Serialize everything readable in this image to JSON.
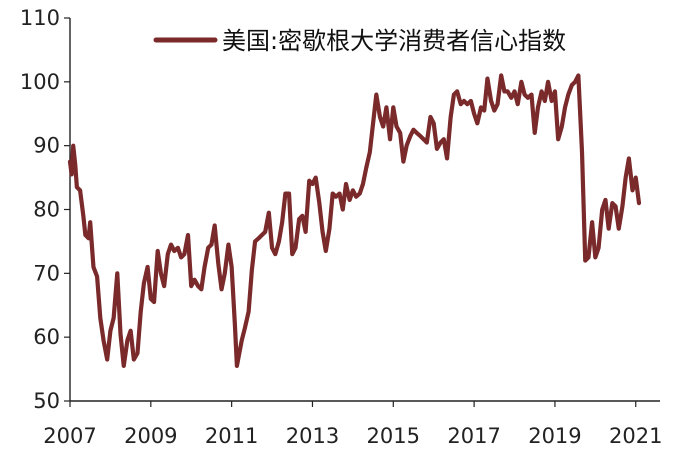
{
  "chart_data": {
    "type": "line",
    "title": "",
    "xlabel": "",
    "ylabel": "",
    "ylim": [
      50,
      110
    ],
    "xlim": [
      2007.0,
      2021.6
    ],
    "grid": false,
    "legend_position": "top",
    "y_ticks": [
      50,
      60,
      70,
      80,
      90,
      100,
      110
    ],
    "y_tick_labels": [
      "50",
      "60",
      "70",
      "80",
      "90",
      "100",
      "110"
    ],
    "x_ticks": [
      2007,
      2009,
      2011,
      2013,
      2015,
      2017,
      2019,
      2021
    ],
    "x_tick_labels": [
      "2007",
      "2009",
      "2011",
      "2013",
      "2015",
      "2017",
      "2019",
      "2021"
    ],
    "series": [
      {
        "name": "美国:密歇根大学消费者信心指数",
        "color": "#7a2a2a",
        "points": [
          [
            2007.0,
            87.5
          ],
          [
            2007.04,
            85.5
          ],
          [
            2007.08,
            90.0
          ],
          [
            2007.13,
            87.0
          ],
          [
            2007.17,
            83.5
          ],
          [
            2007.25,
            83.0
          ],
          [
            2007.33,
            79.0
          ],
          [
            2007.38,
            76.0
          ],
          [
            2007.46,
            75.5
          ],
          [
            2007.5,
            78.0
          ],
          [
            2007.58,
            71.0
          ],
          [
            2007.67,
            69.5
          ],
          [
            2007.75,
            63.0
          ],
          [
            2007.83,
            59.5
          ],
          [
            2007.92,
            56.5
          ],
          [
            2008.0,
            61.0
          ],
          [
            2008.08,
            63.0
          ],
          [
            2008.17,
            70.0
          ],
          [
            2008.25,
            60.5
          ],
          [
            2008.33,
            55.5
          ],
          [
            2008.42,
            59.5
          ],
          [
            2008.5,
            61.0
          ],
          [
            2008.58,
            56.5
          ],
          [
            2008.67,
            57.5
          ],
          [
            2008.75,
            64.0
          ],
          [
            2008.83,
            68.5
          ],
          [
            2008.92,
            71.0
          ],
          [
            2009.0,
            66.0
          ],
          [
            2009.08,
            65.5
          ],
          [
            2009.17,
            73.5
          ],
          [
            2009.25,
            70.0
          ],
          [
            2009.33,
            68.0
          ],
          [
            2009.42,
            73.0
          ],
          [
            2009.5,
            74.5
          ],
          [
            2009.58,
            73.5
          ],
          [
            2009.67,
            74.0
          ],
          [
            2009.75,
            72.5
          ],
          [
            2009.83,
            73.0
          ],
          [
            2009.92,
            76.0
          ],
          [
            2010.0,
            68.0
          ],
          [
            2010.08,
            69.0
          ],
          [
            2010.17,
            68.0
          ],
          [
            2010.25,
            67.5
          ],
          [
            2010.33,
            71.0
          ],
          [
            2010.42,
            74.0
          ],
          [
            2010.5,
            74.5
          ],
          [
            2010.58,
            77.5
          ],
          [
            2010.67,
            71.5
          ],
          [
            2010.75,
            67.5
          ],
          [
            2010.83,
            70.0
          ],
          [
            2010.92,
            74.5
          ],
          [
            2011.0,
            71.0
          ],
          [
            2011.08,
            62.0
          ],
          [
            2011.13,
            55.5
          ],
          [
            2011.25,
            59.5
          ],
          [
            2011.33,
            61.5
          ],
          [
            2011.42,
            64.0
          ],
          [
            2011.5,
            70.5
          ],
          [
            2011.58,
            75.0
          ],
          [
            2011.67,
            75.5
          ],
          [
            2011.75,
            76.0
          ],
          [
            2011.83,
            76.5
          ],
          [
            2011.92,
            79.5
          ],
          [
            2012.0,
            74.0
          ],
          [
            2012.08,
            73.0
          ],
          [
            2012.17,
            75.0
          ],
          [
            2012.25,
            78.0
          ],
          [
            2012.33,
            82.5
          ],
          [
            2012.42,
            82.5
          ],
          [
            2012.5,
            73.0
          ],
          [
            2012.58,
            74.0
          ],
          [
            2012.67,
            78.5
          ],
          [
            2012.75,
            79.0
          ],
          [
            2012.83,
            76.5
          ],
          [
            2012.92,
            84.5
          ],
          [
            2013.0,
            84.0
          ],
          [
            2013.08,
            85.0
          ],
          [
            2013.17,
            81.0
          ],
          [
            2013.25,
            76.5
          ],
          [
            2013.33,
            73.5
          ],
          [
            2013.42,
            77.0
          ],
          [
            2013.5,
            82.5
          ],
          [
            2013.58,
            82.0
          ],
          [
            2013.67,
            82.5
          ],
          [
            2013.75,
            80.0
          ],
          [
            2013.83,
            84.0
          ],
          [
            2013.92,
            81.5
          ],
          [
            2014.0,
            83.0
          ],
          [
            2014.08,
            82.0
          ],
          [
            2014.17,
            82.5
          ],
          [
            2014.25,
            84.0
          ],
          [
            2014.33,
            86.5
          ],
          [
            2014.42,
            89.0
          ],
          [
            2014.5,
            93.5
          ],
          [
            2014.58,
            98.0
          ],
          [
            2014.67,
            94.5
          ],
          [
            2014.75,
            93.0
          ],
          [
            2014.83,
            96.0
          ],
          [
            2014.92,
            91.0
          ],
          [
            2015.0,
            96.0
          ],
          [
            2015.08,
            93.0
          ],
          [
            2015.17,
            92.0
          ],
          [
            2015.25,
            87.5
          ],
          [
            2015.33,
            90.0
          ],
          [
            2015.42,
            91.5
          ],
          [
            2015.5,
            92.5
          ],
          [
            2015.58,
            92.0
          ],
          [
            2015.67,
            91.5
          ],
          [
            2015.75,
            91.0
          ],
          [
            2015.83,
            90.5
          ],
          [
            2015.92,
            94.5
          ],
          [
            2016.0,
            93.5
          ],
          [
            2016.08,
            89.5
          ],
          [
            2016.17,
            90.5
          ],
          [
            2016.25,
            91.0
          ],
          [
            2016.33,
            88.0
          ],
          [
            2016.42,
            94.5
          ],
          [
            2016.5,
            98.0
          ],
          [
            2016.58,
            98.5
          ],
          [
            2016.67,
            96.5
          ],
          [
            2016.75,
            97.0
          ],
          [
            2016.83,
            96.5
          ],
          [
            2016.92,
            97.0
          ],
          [
            2017.0,
            95.0
          ],
          [
            2017.08,
            93.5
          ],
          [
            2017.17,
            96.0
          ],
          [
            2017.25,
            95.5
          ],
          [
            2017.33,
            100.5
          ],
          [
            2017.42,
            97.0
          ],
          [
            2017.5,
            95.5
          ],
          [
            2017.58,
            96.5
          ],
          [
            2017.67,
            101.0
          ],
          [
            2017.75,
            98.5
          ],
          [
            2017.83,
            98.5
          ],
          [
            2017.92,
            97.5
          ],
          [
            2018.0,
            98.5
          ],
          [
            2018.08,
            96.5
          ],
          [
            2018.17,
            100.0
          ],
          [
            2018.25,
            98.0
          ],
          [
            2018.33,
            97.5
          ],
          [
            2018.42,
            98.0
          ],
          [
            2018.5,
            92.0
          ],
          [
            2018.58,
            96.0
          ],
          [
            2018.67,
            98.5
          ],
          [
            2018.75,
            97.0
          ],
          [
            2018.83,
            100.0
          ],
          [
            2018.92,
            97.0
          ],
          [
            2019.0,
            98.5
          ],
          [
            2019.08,
            91.0
          ],
          [
            2019.17,
            93.0
          ],
          [
            2019.25,
            96.0
          ],
          [
            2019.33,
            98.0
          ],
          [
            2019.42,
            99.5
          ],
          [
            2019.5,
            100.0
          ],
          [
            2019.58,
            101.0
          ],
          [
            2019.67,
            89.0
          ],
          [
            2019.75,
            72.0
          ],
          [
            2019.83,
            72.5
          ],
          [
            2019.92,
            78.0
          ],
          [
            2020.0,
            72.5
          ],
          [
            2020.08,
            74.0
          ],
          [
            2020.17,
            80.0
          ],
          [
            2020.25,
            81.5
          ],
          [
            2020.33,
            77.0
          ],
          [
            2020.42,
            81.0
          ],
          [
            2020.5,
            80.5
          ],
          [
            2020.58,
            77.0
          ],
          [
            2020.67,
            80.5
          ],
          [
            2020.75,
            85.0
          ],
          [
            2020.83,
            88.0
          ],
          [
            2020.92,
            83.0
          ],
          [
            2021.0,
            85.0
          ],
          [
            2021.08,
            81.0
          ]
        ]
      }
    ]
  }
}
